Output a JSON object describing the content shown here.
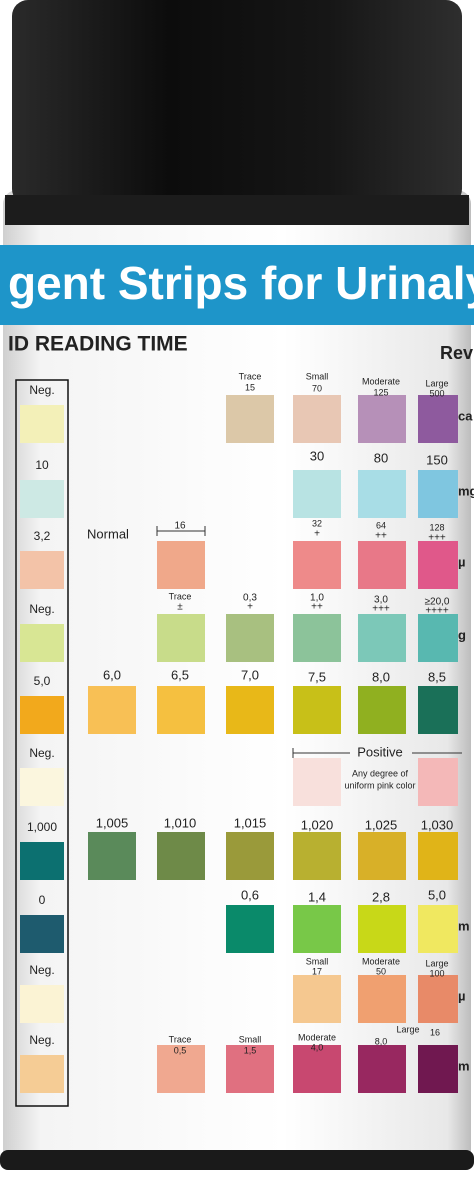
{
  "header": {
    "title": "gent Strips for Urinalysis",
    "reading_time": "ID READING TIME",
    "rev": "Rev"
  },
  "left_column": [
    "Neg.",
    "10",
    "3,2",
    "Neg.",
    "5,0",
    "Neg.",
    "1,000",
    "0",
    "Neg.",
    "Neg."
  ],
  "side_labels": [
    "ca",
    "mg",
    "µ",
    "g",
    "m",
    "µ",
    "m"
  ],
  "labels": [
    "Trace",
    "15",
    "Small",
    "70",
    "Moderate",
    "125",
    "Large",
    "500",
    "30",
    "80",
    "150",
    "Normal",
    "16",
    "32",
    "+",
    "64",
    "++",
    "128",
    "+++",
    "Trace",
    "±",
    "0,3",
    "+",
    "1,0",
    "++",
    "3,0",
    "+++",
    "≥20,0",
    "++++",
    "6,0",
    "6,5",
    "7,0",
    "7,5",
    "8,0",
    "8,5",
    "Positive",
    "Any degree of",
    "uniform pink color",
    "1,005",
    "1,010",
    "1,015",
    "1,020",
    "1,025",
    "1,030",
    "0,6",
    "1,4",
    "2,8",
    "5,0",
    "Small",
    "17",
    "Moderate",
    "50",
    "Large",
    "100",
    "Trace",
    "0,5",
    "Small",
    "1,5",
    "Moderate",
    "4,0",
    "8,0",
    "Large",
    "16"
  ]
}
